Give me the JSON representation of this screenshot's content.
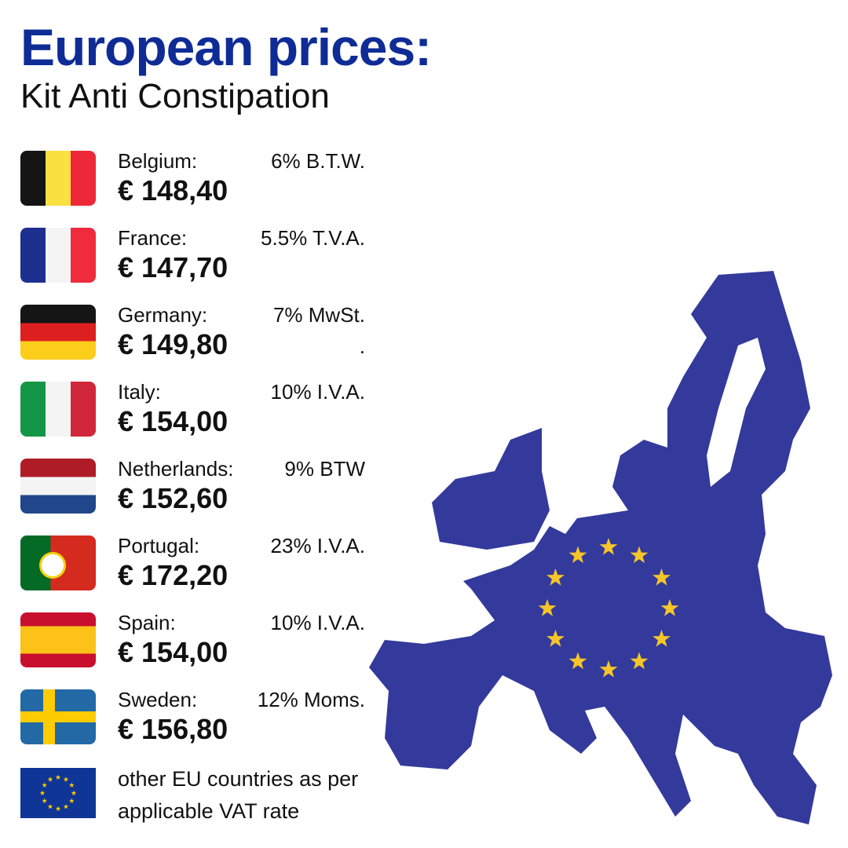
{
  "header": {
    "title": "European prices:",
    "subtitle": "Kit Anti Constipation"
  },
  "countries": [
    {
      "name": "Belgium:",
      "vat": "6% B.T.W.",
      "price": "€ 148,40"
    },
    {
      "name": "France:",
      "vat": "5.5% T.V.A.",
      "price": "€ 147,70"
    },
    {
      "name": "Germany:",
      "vat": "7% MwSt.",
      "extra": ".",
      "price": "€ 149,80"
    },
    {
      "name": "Italy:",
      "vat": "10% I.V.A.",
      "price": "€ 154,00"
    },
    {
      "name": "Netherlands:",
      "vat": "9% BTW",
      "price": "€ 152,60"
    },
    {
      "name": "Portugal:",
      "vat": "23% I.V.A.",
      "price": "€ 172,20"
    },
    {
      "name": "Spain:",
      "vat": "10% I.V.A.",
      "price": "€ 154,00"
    },
    {
      "name": "Sweden:",
      "vat": "12% Moms.",
      "price": "€ 156,80"
    }
  ],
  "footer": {
    "text": "other EU countries as per applicable VAT rate"
  }
}
